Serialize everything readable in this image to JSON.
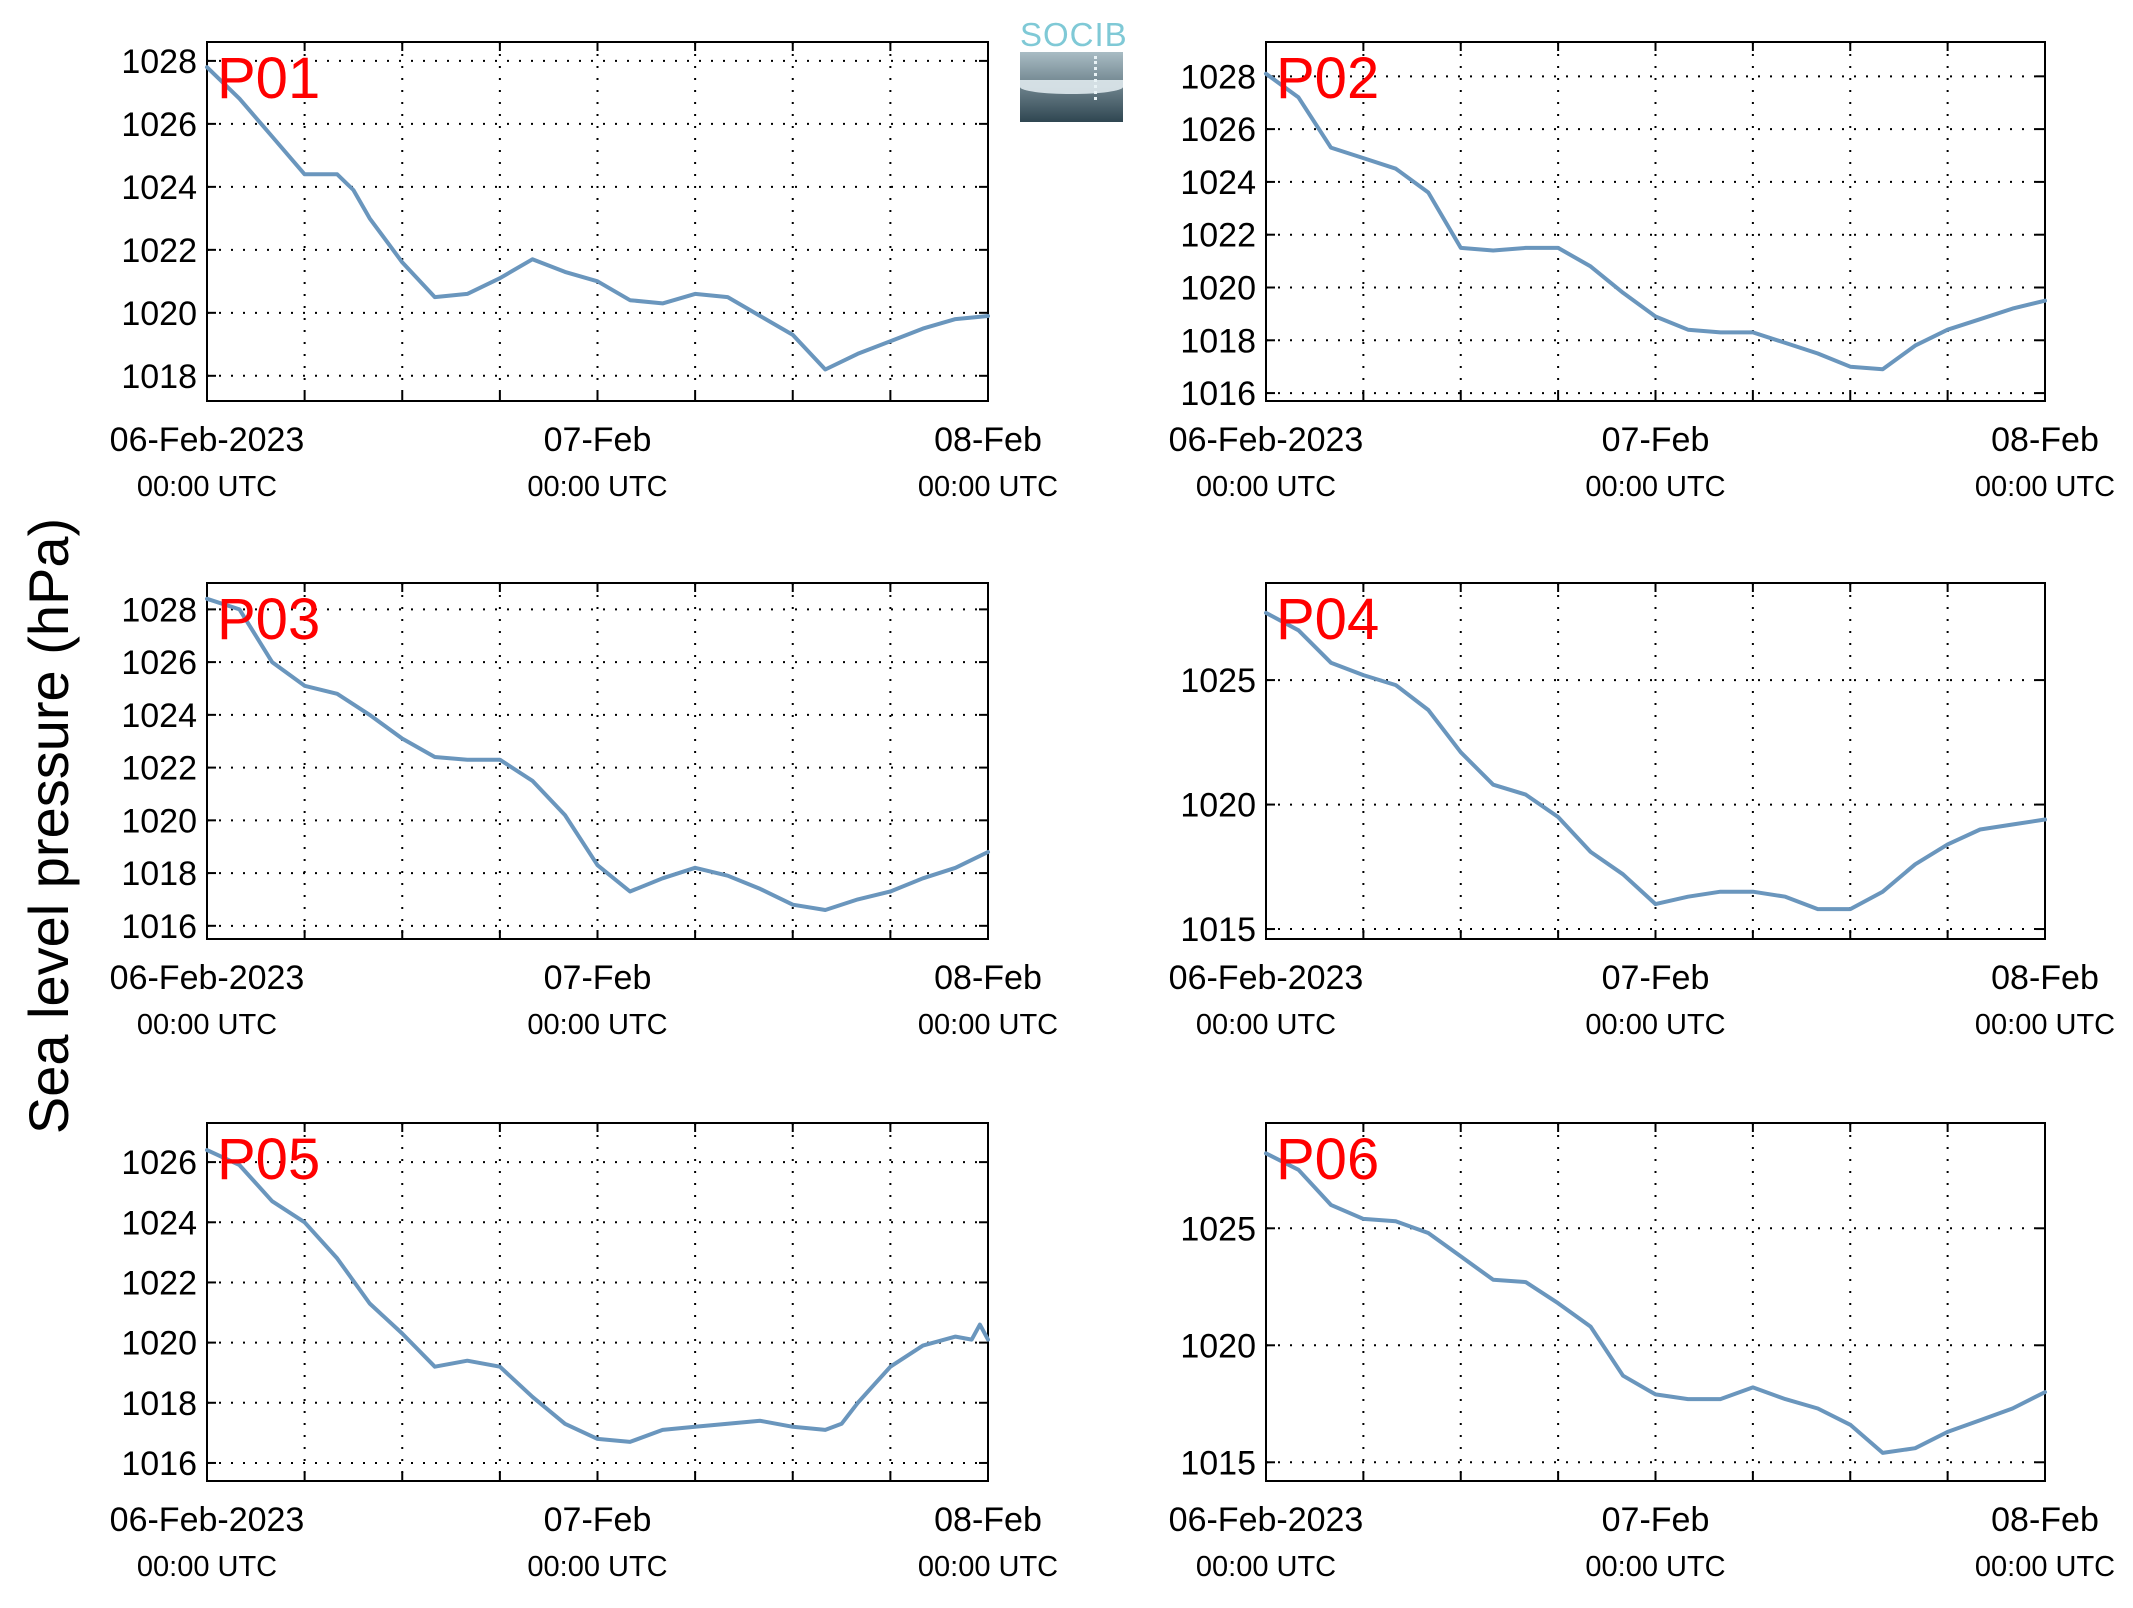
{
  "figure": {
    "ylabel": "Sea level pressure (hPa)",
    "logo_text": "SOCIB",
    "line_color": "#6a96bd",
    "station_label_color": "#ff0000"
  },
  "chart_data": [
    {
      "type": "line",
      "station": "P01",
      "xlim": [
        "06-Feb-2023 00:00",
        "08-Feb 00:00"
      ],
      "xticks": [
        {
          "main": "06-Feb-2023",
          "sub": "00:00 UTC"
        },
        {
          "main": "07-Feb",
          "sub": "00:00 UTC"
        },
        {
          "main": "08-Feb",
          "sub": "00:00 UTC"
        }
      ],
      "ylim": [
        1017.2,
        1028.6
      ],
      "yticks": [
        1018,
        1020,
        1022,
        1024,
        1026,
        1028
      ],
      "grid": true,
      "x_hours": [
        0,
        2,
        4,
        6,
        8,
        9,
        10,
        12,
        14,
        16,
        18,
        20,
        22,
        24,
        26,
        28,
        30,
        32,
        34,
        36,
        38,
        40,
        42,
        44,
        46,
        48
      ],
      "values": [
        1027.8,
        1026.8,
        1025.6,
        1024.4,
        1024.4,
        1023.9,
        1023.0,
        1021.6,
        1020.5,
        1020.6,
        1021.1,
        1021.7,
        1021.3,
        1021.0,
        1020.4,
        1020.3,
        1020.6,
        1020.5,
        1019.9,
        1019.3,
        1018.2,
        1018.7,
        1019.1,
        1019.5,
        1019.8,
        1019.9
      ]
    },
    {
      "type": "line",
      "station": "P02",
      "xlim": [
        "06-Feb-2023 00:00",
        "08-Feb 00:00"
      ],
      "xticks": [
        {
          "main": "06-Feb-2023",
          "sub": "00:00 UTC"
        },
        {
          "main": "07-Feb",
          "sub": "00:00 UTC"
        },
        {
          "main": "08-Feb",
          "sub": "00:00 UTC"
        }
      ],
      "ylim": [
        1015.7,
        1029.3
      ],
      "yticks": [
        1016,
        1018,
        1020,
        1022,
        1024,
        1026,
        1028
      ],
      "grid": true,
      "x_hours": [
        0,
        2,
        4,
        6,
        8,
        10,
        12,
        14,
        16,
        18,
        20,
        22,
        24,
        26,
        28,
        30,
        32,
        34,
        36,
        38,
        40,
        42,
        44,
        46,
        48
      ],
      "values": [
        1028.1,
        1027.2,
        1025.3,
        1024.9,
        1024.5,
        1023.6,
        1021.5,
        1021.4,
        1021.5,
        1021.5,
        1020.8,
        1019.8,
        1018.9,
        1018.4,
        1018.3,
        1018.3,
        1017.9,
        1017.5,
        1017.0,
        1016.9,
        1017.8,
        1018.4,
        1018.8,
        1019.2,
        1019.5
      ]
    },
    {
      "type": "line",
      "station": "P03",
      "xlim": [
        "06-Feb-2023 00:00",
        "08-Feb 00:00"
      ],
      "xticks": [
        {
          "main": "06-Feb-2023",
          "sub": "00:00 UTC"
        },
        {
          "main": "07-Feb",
          "sub": "00:00 UTC"
        },
        {
          "main": "08-Feb",
          "sub": "00:00 UTC"
        }
      ],
      "ylim": [
        1015.5,
        1029.0
      ],
      "yticks": [
        1016,
        1018,
        1020,
        1022,
        1024,
        1026,
        1028
      ],
      "grid": true,
      "x_hours": [
        0,
        2,
        4,
        6,
        8,
        10,
        12,
        14,
        16,
        18,
        20,
        22,
        24,
        26,
        28,
        30,
        32,
        34,
        36,
        38,
        40,
        42,
        44,
        46,
        48
      ],
      "values": [
        1028.4,
        1028.0,
        1026.0,
        1025.1,
        1024.8,
        1024.0,
        1023.1,
        1022.4,
        1022.3,
        1022.3,
        1021.5,
        1020.2,
        1018.3,
        1017.3,
        1017.8,
        1018.2,
        1017.9,
        1017.4,
        1016.8,
        1016.6,
        1017.0,
        1017.3,
        1017.8,
        1018.2,
        1018.8
      ]
    },
    {
      "type": "line",
      "station": "P04",
      "xlim": [
        "06-Feb-2023 00:00",
        "08-Feb 00:00"
      ],
      "xticks": [
        {
          "main": "06-Feb-2023",
          "sub": "00:00 UTC"
        },
        {
          "main": "07-Feb",
          "sub": "00:00 UTC"
        },
        {
          "main": "08-Feb",
          "sub": "00:00 UTC"
        }
      ],
      "ylim": [
        1014.6,
        1028.9
      ],
      "yticks": [
        1015,
        1020,
        1025
      ],
      "grid": true,
      "x_hours": [
        0,
        2,
        4,
        6,
        8,
        10,
        12,
        14,
        16,
        18,
        20,
        22,
        24,
        26,
        28,
        30,
        32,
        34,
        36,
        38,
        40,
        42,
        44,
        46,
        48
      ],
      "values": [
        1027.7,
        1027.0,
        1025.7,
        1025.2,
        1024.8,
        1023.8,
        1022.1,
        1020.8,
        1020.4,
        1019.5,
        1018.1,
        1017.2,
        1016.0,
        1016.3,
        1016.5,
        1016.5,
        1016.3,
        1015.8,
        1015.8,
        1016.5,
        1017.6,
        1018.4,
        1019.0,
        1019.2,
        1019.4
      ]
    },
    {
      "type": "line",
      "station": "P05",
      "xlim": [
        "06-Feb-2023 00:00",
        "08-Feb 00:00"
      ],
      "xticks": [
        {
          "main": "06-Feb-2023",
          "sub": "00:00 UTC"
        },
        {
          "main": "07-Feb",
          "sub": "00:00 UTC"
        },
        {
          "main": "08-Feb",
          "sub": "00:00 UTC"
        }
      ],
      "ylim": [
        1015.4,
        1027.3
      ],
      "yticks": [
        1016,
        1018,
        1020,
        1022,
        1024,
        1026
      ],
      "grid": true,
      "x_hours": [
        0,
        2,
        4,
        6,
        8,
        10,
        12,
        14,
        16,
        18,
        20,
        22,
        24,
        26,
        28,
        30,
        32,
        34,
        36,
        38,
        39,
        40,
        41,
        42,
        44,
        46,
        47,
        47.5,
        48
      ],
      "values": [
        1026.4,
        1025.9,
        1024.7,
        1024.0,
        1022.8,
        1021.3,
        1020.3,
        1019.2,
        1019.4,
        1019.2,
        1018.2,
        1017.3,
        1016.8,
        1016.7,
        1017.1,
        1017.2,
        1017.3,
        1017.4,
        1017.2,
        1017.1,
        1017.3,
        1018.0,
        1018.6,
        1019.2,
        1019.9,
        1020.2,
        1020.1,
        1020.6,
        1020.1
      ]
    },
    {
      "type": "line",
      "station": "P06",
      "xlim": [
        "06-Feb-2023 00:00",
        "08-Feb 00:00"
      ],
      "xticks": [
        {
          "main": "06-Feb-2023",
          "sub": "00:00 UTC"
        },
        {
          "main": "07-Feb",
          "sub": "00:00 UTC"
        },
        {
          "main": "08-Feb",
          "sub": "00:00 UTC"
        }
      ],
      "ylim": [
        1014.2,
        1029.5
      ],
      "yticks": [
        1015,
        1020,
        1025
      ],
      "grid": true,
      "x_hours": [
        0,
        2,
        4,
        6,
        8,
        10,
        12,
        14,
        16,
        18,
        20,
        22,
        24,
        26,
        28,
        30,
        32,
        34,
        36,
        38,
        40,
        42,
        44,
        46,
        48
      ],
      "values": [
        1028.2,
        1027.5,
        1026.0,
        1025.4,
        1025.3,
        1024.8,
        1023.8,
        1022.8,
        1022.7,
        1021.8,
        1020.8,
        1018.7,
        1017.9,
        1017.7,
        1017.7,
        1018.2,
        1017.7,
        1017.3,
        1016.6,
        1015.4,
        1015.6,
        1016.3,
        1016.8,
        1017.3,
        1018.0
      ]
    }
  ]
}
